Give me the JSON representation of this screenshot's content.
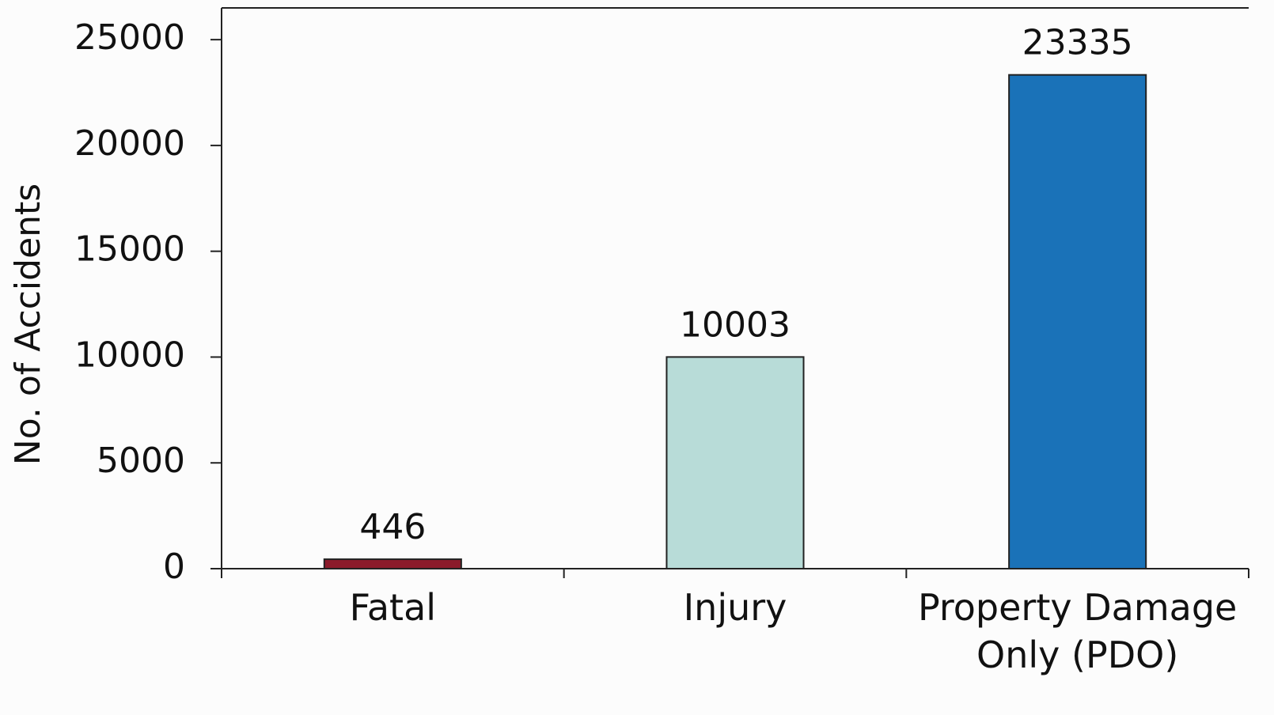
{
  "chart_data": {
    "type": "bar",
    "y_label": "No. of Accidents",
    "categories": [
      "Fatal",
      "Injury",
      "Property Damage Only (PDO)"
    ],
    "values": [
      446,
      10003,
      23335
    ],
    "colors": [
      "#8b1a2a",
      "#b8dcd8",
      "#1a72b8"
    ],
    "ylim": [
      0,
      26500
    ],
    "yticks": [
      0,
      5000,
      10000,
      15000,
      20000,
      25000
    ],
    "grid": false
  }
}
